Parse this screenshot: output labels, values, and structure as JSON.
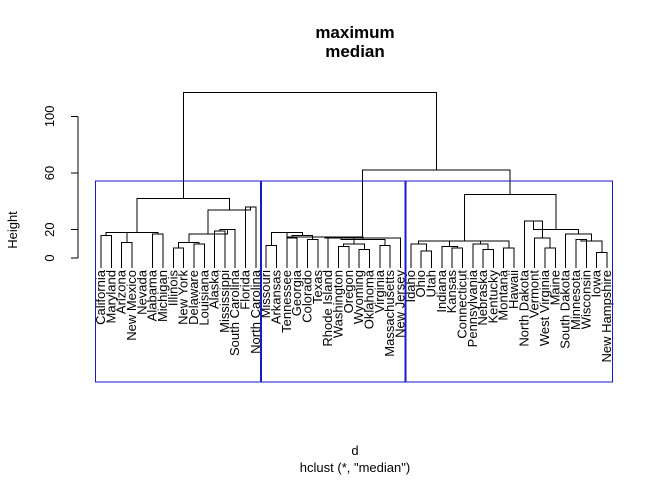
{
  "chart_data": {
    "type": "dendrogram",
    "title": [
      "maximum",
      "median"
    ],
    "xlabel": "d",
    "sublabel": "hclust (*, \"median\")",
    "ylabel": "Height",
    "ylim": [
      0,
      120
    ],
    "yticks": [
      0,
      20,
      60,
      100
    ],
    "labels": [
      "California",
      "Maryland",
      "Arizona",
      "New Mexico",
      "Nevada",
      "Alabama",
      "Michigan",
      "Illinois",
      "New York",
      "Delaware",
      "Louisiana",
      "Alaska",
      "Mississippi",
      "South Carolina",
      "Florida",
      "North Carolina",
      "Missouri",
      "Arkansas",
      "Tennessee",
      "Georgia",
      "Colorado",
      "Texas",
      "Rhode Island",
      "Washington",
      "Oregon",
      "Wyoming",
      "Oklahoma",
      "Virginia",
      "Massachusetts",
      "New Jersey",
      "Idaho",
      "Ohio",
      "Utah",
      "Indiana",
      "Kansas",
      "Connecticut",
      "Pennsylvania",
      "Nebraska",
      "Kentucky",
      "Montana",
      "Hawaii",
      "North Dakota",
      "Vermont",
      "West Virginia",
      "Maine",
      "South Dakota",
      "Minnesota",
      "Wisconsin",
      "Iowa",
      "New Hampshire"
    ],
    "merges": [
      [
        "1",
        "2",
        16
      ],
      [
        "3",
        "4",
        11
      ],
      [
        "m1",
        "m2",
        18
      ],
      [
        "6",
        "7",
        17
      ],
      [
        "m3",
        "m4",
        18
      ],
      [
        "8",
        "9",
        7
      ],
      [
        "10",
        "11",
        10
      ],
      [
        "m6",
        "m7",
        11
      ],
      [
        "12",
        "13",
        19
      ],
      [
        "14",
        "m9",
        20
      ],
      [
        "m8",
        "m10",
        17
      ],
      [
        "15",
        "16",
        36
      ],
      [
        "m11",
        "m12",
        34
      ],
      [
        "m5",
        "m13",
        42
      ],
      [
        "17",
        "18",
        9
      ],
      [
        "19",
        "20",
        14
      ],
      [
        "21",
        "22",
        13
      ],
      [
        "m16",
        "m17",
        16
      ],
      [
        "m15",
        "m18",
        18
      ],
      [
        "24",
        "25",
        8
      ],
      [
        "26",
        "27",
        6
      ],
      [
        "m20",
        "m21",
        10
      ],
      [
        "23",
        "m22",
        15
      ],
      [
        "28",
        "29",
        9
      ],
      [
        "m23",
        "m24",
        13
      ],
      [
        "m19",
        "m25",
        15
      ],
      [
        "30",
        "m26",
        14
      ],
      [
        "32",
        "33",
        5
      ],
      [
        "31",
        "m28",
        10
      ],
      [
        "35",
        "36",
        7
      ],
      [
        "34",
        "m30",
        8
      ],
      [
        "m29",
        "m31",
        12
      ],
      [
        "38",
        "39",
        6
      ],
      [
        "37",
        "m33",
        10
      ],
      [
        "40",
        "41",
        7
      ],
      [
        "m34",
        "m35",
        12
      ],
      [
        "m32",
        "m36",
        12
      ],
      [
        "44",
        "45",
        7
      ],
      [
        "43",
        "m38",
        14
      ],
      [
        "42",
        "m39",
        26
      ],
      [
        "47",
        "48",
        13
      ],
      [
        "49",
        "50",
        4
      ],
      [
        "m41",
        "m42",
        12
      ],
      [
        "46",
        "m43",
        17
      ],
      [
        "m40",
        "m44",
        20
      ],
      [
        "m37",
        "m45",
        45
      ],
      [
        "m27",
        "m46",
        62
      ],
      [
        "m14",
        "m47",
        117
      ]
    ],
    "clusters": [
      [
        1,
        16
      ],
      [
        17,
        30
      ],
      [
        31,
        50
      ]
    ]
  }
}
